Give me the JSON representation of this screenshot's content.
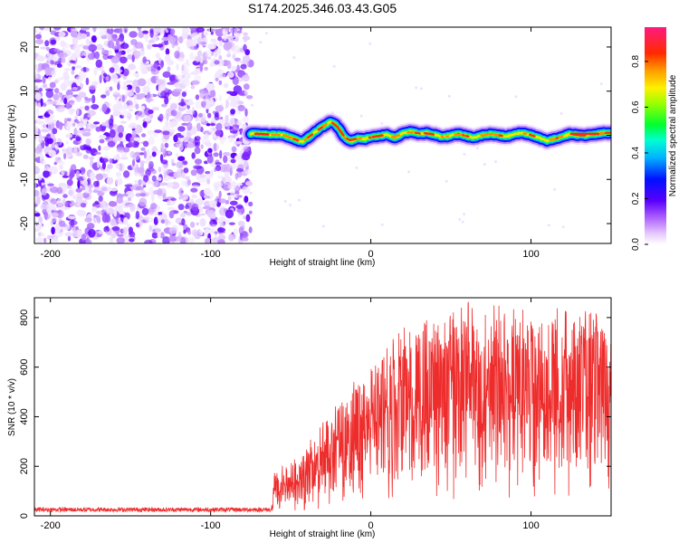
{
  "title": "S174.2025.346.03.43.G05",
  "colors": {
    "snr_line": "#ee2c2c",
    "background": "#ffffff",
    "frame": "#000000"
  },
  "spectrogram": {
    "chart_data": {
      "type": "heatmap",
      "xlabel": "Height of straight line (km)",
      "ylabel": "Frequency (Hz)",
      "xlim": [
        -210,
        150
      ],
      "ylim": [
        -24.5,
        24.5
      ],
      "x_ticks": [
        -200,
        -100,
        0,
        100
      ],
      "y_ticks": [
        -20,
        -10,
        0,
        10,
        20
      ],
      "noise_region_end": -75,
      "trace": [
        [
          -75,
          0.4
        ],
        [
          -65,
          0.2
        ],
        [
          -55,
          0.1
        ],
        [
          -48,
          -0.8
        ],
        [
          -43,
          -1.5
        ],
        [
          -38,
          -0.2
        ],
        [
          -33,
          1.2
        ],
        [
          -29,
          2.2
        ],
        [
          -25,
          3.0
        ],
        [
          -22,
          2.5
        ],
        [
          -19,
          1.0
        ],
        [
          -16,
          -0.6
        ],
        [
          -12,
          -1.3
        ],
        [
          -8,
          -0.6
        ],
        [
          -4,
          -0.9
        ],
        [
          0,
          -0.4
        ],
        [
          5,
          -0.2
        ],
        [
          10,
          0.2
        ],
        [
          15,
          -0.6
        ],
        [
          20,
          0.4
        ],
        [
          25,
          0.8
        ],
        [
          30,
          0.4
        ],
        [
          35,
          0.5
        ],
        [
          40,
          0.1
        ],
        [
          45,
          -0.4
        ],
        [
          50,
          -0.1
        ],
        [
          55,
          0.3
        ],
        [
          60,
          -0.2
        ],
        [
          65,
          -0.6
        ],
        [
          70,
          0.1
        ],
        [
          75,
          0.3
        ],
        [
          80,
          0.0
        ],
        [
          85,
          -0.3
        ],
        [
          90,
          0.4
        ],
        [
          95,
          0.5
        ],
        [
          100,
          0.1
        ],
        [
          105,
          -0.6
        ],
        [
          110,
          -1.2
        ],
        [
          115,
          -0.8
        ],
        [
          120,
          -0.2
        ],
        [
          125,
          0.3
        ],
        [
          130,
          0.0
        ],
        [
          135,
          0.0
        ],
        [
          140,
          0.2
        ],
        [
          145,
          0.5
        ],
        [
          150,
          0.6
        ]
      ]
    },
    "colorbar": {
      "label": "Normalized spectral amplitude",
      "ticks": [
        "0.0",
        "0.2",
        "0.4",
        "0.6",
        "0.8"
      ],
      "tick_values": [
        0.0,
        0.2,
        0.4,
        0.6,
        0.8
      ],
      "range": [
        0,
        0.95
      ]
    }
  },
  "snr": {
    "chart_data": {
      "type": "line",
      "xlabel": "Height of straight line (km)",
      "ylabel": "SNR (10 * v/v)",
      "xlim": [
        -210,
        150
      ],
      "ylim": [
        0,
        880
      ],
      "x_ticks": [
        -200,
        -100,
        0,
        100
      ],
      "y_ticks": [
        0,
        200,
        400,
        600,
        800
      ],
      "envelope": [
        [
          -210,
          25
        ],
        [
          -150,
          25
        ],
        [
          -100,
          25
        ],
        [
          -70,
          25
        ],
        [
          -62,
          25
        ],
        [
          -60,
          140
        ],
        [
          -50,
          170
        ],
        [
          -40,
          220
        ],
        [
          -30,
          280
        ],
        [
          -20,
          350
        ],
        [
          -10,
          410
        ],
        [
          0,
          470
        ],
        [
          10,
          530
        ],
        [
          20,
          570
        ],
        [
          30,
          600
        ],
        [
          40,
          620
        ],
        [
          50,
          630
        ],
        [
          60,
          640
        ],
        [
          70,
          640
        ],
        [
          80,
          635
        ],
        [
          90,
          630
        ],
        [
          100,
          630
        ],
        [
          110,
          625
        ],
        [
          120,
          620
        ],
        [
          130,
          615
        ],
        [
          140,
          610
        ],
        [
          150,
          610
        ]
      ]
    }
  }
}
